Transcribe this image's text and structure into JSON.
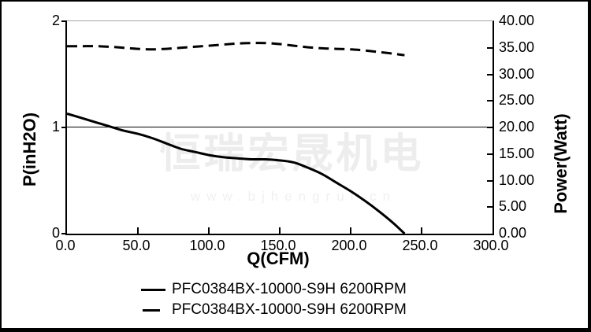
{
  "watermark": {
    "cjk_text": "恒瑞宏晟机电",
    "url_text": "www.bjhengrui.cn",
    "color": "#ededed"
  },
  "legend": {
    "items": [
      {
        "label": "PFC0384BX-10000-S9H 6200RPM",
        "style": "solid"
      },
      {
        "label": "PFC0384BX-10000-S9H 6200RPM",
        "style": "dashed"
      }
    ]
  },
  "chart_data": {
    "type": "line",
    "title": "",
    "xlabel": "Q(CFM)",
    "ylabel_left": "P(inH2O)",
    "ylabel_right": "Power(Watt)",
    "xlim": [
      0,
      300
    ],
    "ylim_left": [
      0,
      2
    ],
    "ylim_right": [
      0,
      40
    ],
    "x_ticks": [
      "0.0",
      "50.0",
      "100.0",
      "150.0",
      "200.0",
      "250.0",
      "300.0"
    ],
    "y_ticks_left": [
      "0",
      "1",
      "2"
    ],
    "y_ticks_right": [
      "0.00",
      "5.00",
      "10.00",
      "15.00",
      "20.00",
      "25.00",
      "30.00",
      "35.00",
      "40.00"
    ],
    "grid": "single horizontal reference line at P=1 inH2O / 20 Watt",
    "legend_position": "below chart",
    "line_color": "#000000",
    "x": [
      0,
      10,
      20,
      30,
      40,
      50,
      60,
      70,
      80,
      90,
      100,
      110,
      120,
      130,
      140,
      150,
      160,
      170,
      180,
      190,
      200,
      210,
      220,
      230,
      238
    ],
    "series": [
      {
        "name": "PFC0384BX-10000-S9H 6200RPM",
        "quantity": "static pressure",
        "axis": "left",
        "unit": "inH2O",
        "style": "solid",
        "values": [
          1.13,
          1.09,
          1.05,
          1.01,
          0.97,
          0.94,
          0.9,
          0.85,
          0.8,
          0.77,
          0.74,
          0.72,
          0.71,
          0.7,
          0.7,
          0.69,
          0.67,
          0.62,
          0.56,
          0.48,
          0.4,
          0.31,
          0.21,
          0.1,
          0.0
        ]
      },
      {
        "name": "PFC0384BX-10000-S9H 6200RPM",
        "quantity": "power consumption",
        "axis": "right",
        "unit": "Watt",
        "style": "dashed",
        "values": [
          35.3,
          35.3,
          35.3,
          35.2,
          35.0,
          34.8,
          34.7,
          34.8,
          35.0,
          35.2,
          35.4,
          35.6,
          35.8,
          35.9,
          35.9,
          35.7,
          35.4,
          35.1,
          34.9,
          34.8,
          34.7,
          34.5,
          34.2,
          33.9,
          33.6
        ]
      }
    ]
  }
}
